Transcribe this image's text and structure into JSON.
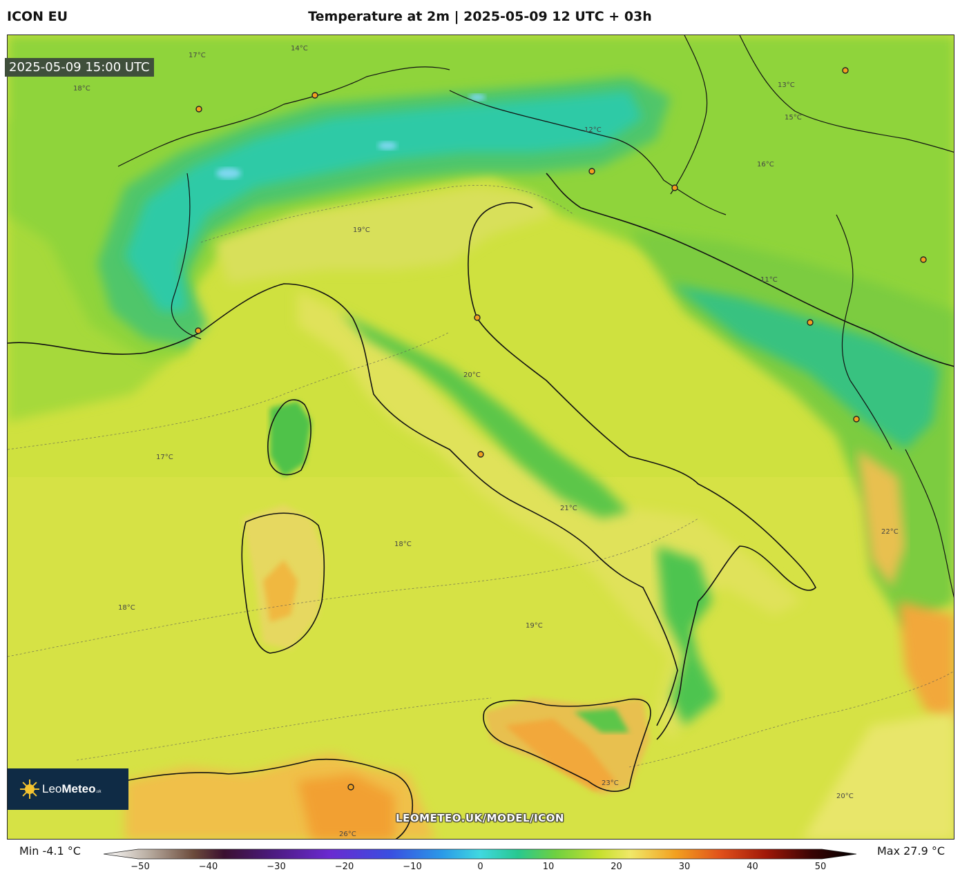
{
  "header": {
    "model": "ICON EU",
    "title": "Temperature at 2m | 2025-05-09 12 UTC + 03h"
  },
  "map": {
    "valid_time": "2025-05-09 15:00 UTC",
    "watermark": "LEOMETEO.UK/MODEL/ICON",
    "logo": {
      "name": "Leo",
      "name_bold": "Meteo",
      "suffix": ".uk"
    },
    "contour_labels": [
      "17°C",
      "14°C",
      "18°C",
      "16°C",
      "15°C",
      "13°C",
      "12°C",
      "19°C",
      "20°C",
      "21°C",
      "22°C",
      "23°C",
      "26°C",
      "11°C"
    ],
    "colors": {
      "sea": "#d6e245",
      "land_warm": "#e8e86a",
      "land_mild": "#a6d93a",
      "mountain": "#5fc85a",
      "high_alps": "#2ec9a8",
      "hot": "#f2b43a",
      "coast": "#111111"
    }
  },
  "colorbar": {
    "min_label": "Min -4.1 °C",
    "max_label": "Max 27.9 °C",
    "ticks": [
      "−50",
      "−40",
      "−30",
      "−20",
      "−10",
      "0",
      "10",
      "20",
      "30",
      "40",
      "50"
    ],
    "range": [
      -50,
      50
    ],
    "stops": [
      [
        "#ffffff",
        0
      ],
      [
        "#b8aca0",
        0.06
      ],
      [
        "#6b4a3a",
        0.12
      ],
      [
        "#3b1030",
        0.16
      ],
      [
        "#4a1a7a",
        0.22
      ],
      [
        "#6a2ad0",
        0.3
      ],
      [
        "#3a4ee0",
        0.38
      ],
      [
        "#2a9ae8",
        0.45
      ],
      [
        "#40d8e0",
        0.5
      ],
      [
        "#28c890",
        0.55
      ],
      [
        "#6ed040",
        0.6
      ],
      [
        "#c8e030",
        0.66
      ],
      [
        "#f0e868",
        0.7
      ],
      [
        "#f2a020",
        0.76
      ],
      [
        "#e0501a",
        0.82
      ],
      [
        "#a01808",
        0.88
      ],
      [
        "#3a0404",
        0.94
      ],
      [
        "#000000",
        1
      ]
    ]
  }
}
